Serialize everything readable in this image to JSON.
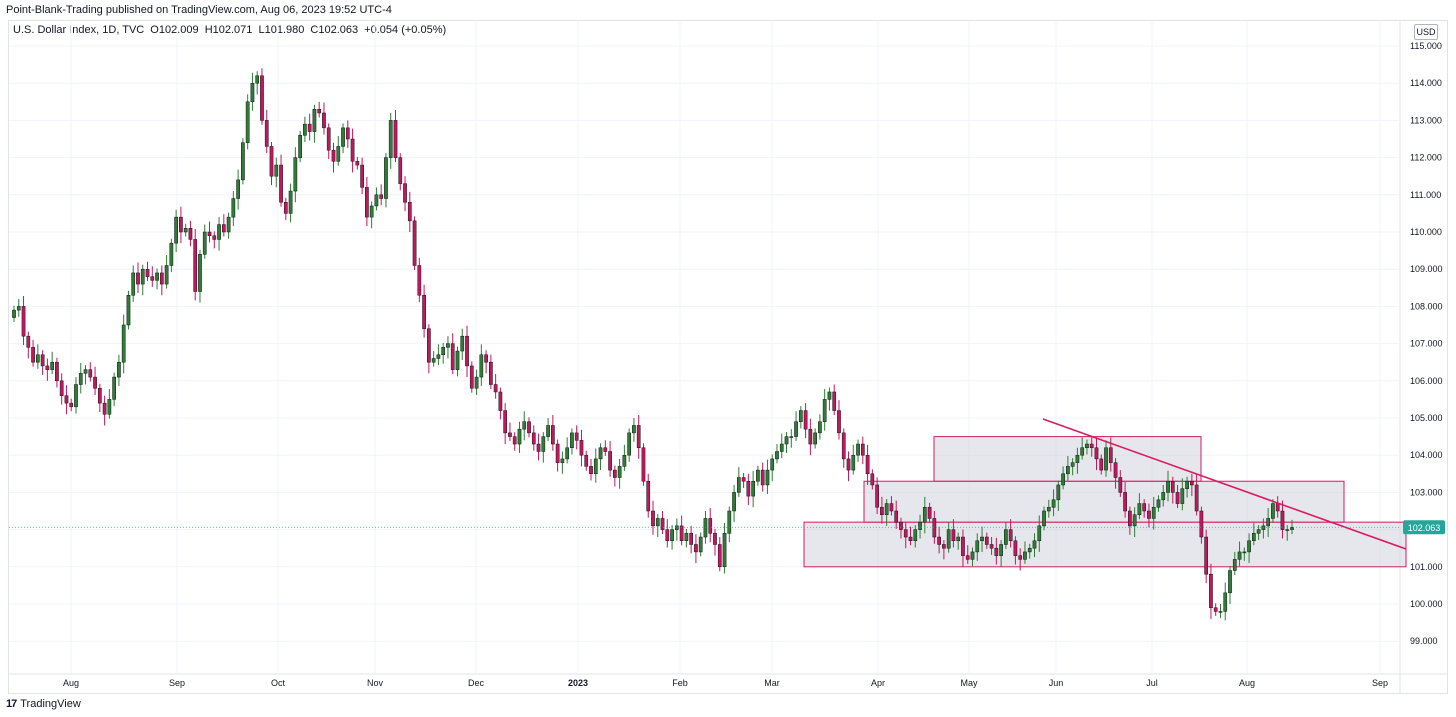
{
  "header": {
    "published": "Point-Blank-Trading published on TradingView.com, Aug 06, 2023 19:52 UTC-4"
  },
  "legend": {
    "symbol": "U.S. Dollar Index, 1D, TVC",
    "open": "O102.009",
    "high": "H102.071",
    "low": "L101.980",
    "close": "C102.063",
    "change": "+0.054 (+0.05%)"
  },
  "currency_label": "USD",
  "footer": {
    "brand": "TradingView",
    "logo_glyph": "17"
  },
  "colors": {
    "up": "#2e7d32",
    "down": "#c2185b",
    "grid": "#f0f3fa",
    "box_fill": "#d1d4dc",
    "box_stroke": "#d81b60",
    "trendline": "#d81b60",
    "price_badge": "#26a69a"
  },
  "chart_data": {
    "type": "candlestick",
    "title": "U.S. Dollar Index",
    "ylim": [
      98.3,
      115.3
    ],
    "y_ticks": [
      "115.000",
      "114.000",
      "113.000",
      "112.000",
      "111.000",
      "110.000",
      "109.000",
      "108.000",
      "107.000",
      "106.000",
      "105.000",
      "104.000",
      "103.000",
      "102.000",
      "101.000",
      "100.000",
      "99.000"
    ],
    "x_ticks": [
      "Aug",
      "Sep",
      "Oct",
      "Nov",
      "Dec",
      "2023",
      "Feb",
      "Mar",
      "Apr",
      "May",
      "Jun",
      "Jul",
      "Aug",
      "Sep"
    ],
    "last_price": "102.063",
    "closes": [
      107.9,
      108.0,
      107.2,
      106.9,
      106.5,
      106.7,
      106.4,
      106.3,
      106.5,
      106.0,
      105.6,
      105.4,
      105.3,
      105.9,
      106.2,
      106.3,
      106.1,
      105.8,
      105.4,
      105.1,
      105.5,
      106.1,
      106.5,
      107.5,
      108.3,
      108.9,
      108.6,
      109.0,
      108.8,
      108.7,
      108.9,
      108.6,
      109.1,
      109.7,
      110.4,
      110.0,
      110.1,
      109.8,
      108.4,
      109.4,
      110.0,
      109.9,
      109.8,
      110.2,
      110.0,
      110.4,
      110.9,
      111.4,
      112.4,
      113.5,
      114.0,
      114.2,
      113.0,
      112.3,
      111.5,
      111.8,
      110.8,
      110.5,
      111.1,
      112.0,
      112.6,
      112.9,
      112.7,
      113.3,
      113.2,
      112.8,
      112.2,
      111.9,
      112.3,
      112.8,
      112.5,
      111.9,
      111.8,
      111.2,
      110.4,
      110.7,
      111.0,
      110.9,
      112.0,
      113.0,
      112.0,
      111.3,
      110.8,
      110.3,
      109.1,
      108.3,
      107.4,
      106.5,
      106.6,
      106.7,
      106.9,
      107.0,
      106.3,
      106.8,
      107.2,
      106.4,
      105.8,
      106.1,
      106.7,
      106.5,
      105.9,
      105.7,
      105.2,
      104.6,
      104.5,
      104.3,
      104.7,
      104.9,
      104.6,
      104.3,
      104.1,
      104.5,
      104.8,
      104.3,
      103.8,
      103.9,
      104.2,
      104.6,
      104.4,
      104.0,
      103.7,
      103.5,
      103.9,
      104.2,
      104.1,
      103.6,
      103.4,
      103.7,
      104.0,
      104.6,
      104.8,
      104.2,
      103.3,
      102.5,
      102.1,
      102.3,
      102.0,
      101.7,
      102.0,
      102.1,
      101.7,
      101.9,
      101.6,
      101.4,
      101.8,
      102.3,
      101.9,
      101.6,
      101.0,
      101.9,
      102.5,
      103.0,
      103.4,
      103.3,
      102.9,
      103.3,
      103.6,
      103.2,
      103.6,
      103.9,
      104.1,
      104.3,
      104.5,
      104.5,
      104.9,
      105.2,
      104.7,
      104.3,
      104.6,
      104.9,
      105.5,
      105.7,
      105.2,
      104.6,
      103.9,
      103.6,
      104.0,
      104.3,
      104.0,
      103.5,
      103.2,
      102.6,
      102.4,
      102.7,
      102.5,
      102.2,
      102.0,
      101.8,
      101.7,
      102.0,
      102.2,
      102.6,
      102.3,
      101.8,
      101.6,
      101.5,
      102.0,
      101.7,
      101.8,
      101.3,
      101.2,
      101.4,
      101.7,
      101.8,
      101.6,
      101.5,
      101.3,
      101.6,
      102.0,
      101.7,
      101.3,
      101.2,
      101.4,
      101.5,
      101.7,
      102.1,
      102.5,
      102.6,
      102.8,
      103.2,
      103.5,
      103.7,
      103.8,
      104.0,
      104.2,
      104.3,
      104.2,
      103.9,
      103.6,
      104.2,
      103.8,
      103.4,
      103.0,
      102.5,
      102.1,
      102.4,
      102.7,
      102.5,
      102.3,
      102.6,
      102.8,
      103.0,
      103.3,
      103.0,
      102.7,
      103.1,
      103.3,
      103.2,
      102.5,
      101.8,
      100.8,
      99.9,
      99.8,
      99.8,
      100.3,
      100.9,
      101.2,
      101.4,
      101.4,
      101.7,
      101.9,
      102.0,
      102.1,
      102.3,
      102.7,
      102.5,
      102.0,
      102.0,
      102.063
    ]
  }
}
